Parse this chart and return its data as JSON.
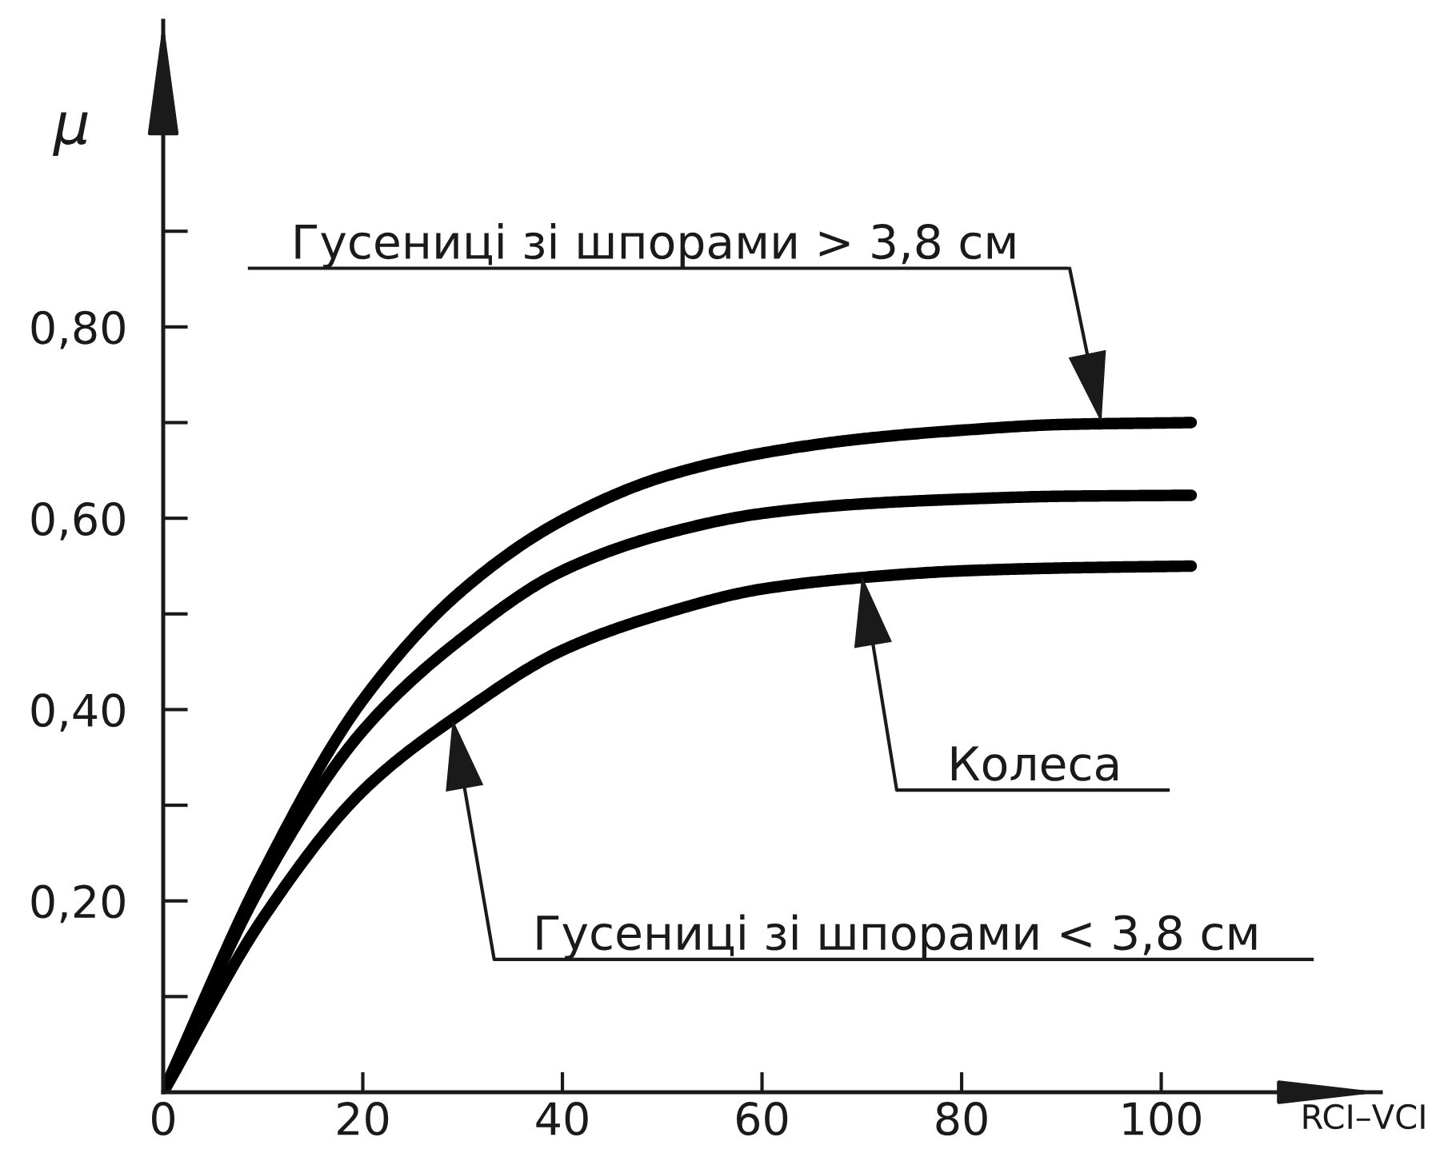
{
  "chart_data": {
    "type": "line",
    "xlabel": "RCI–VCI",
    "ylabel": "μ",
    "xlim": [
      0,
      122
    ],
    "ylim": [
      0,
      1.12
    ],
    "xticks": [
      0,
      20,
      40,
      60,
      80,
      100
    ],
    "yticks": [
      {
        "value": 0.1,
        "label": null
      },
      {
        "value": 0.2,
        "label": "0,20"
      },
      {
        "value": 0.3,
        "label": null
      },
      {
        "value": 0.4,
        "label": "0,40"
      },
      {
        "value": 0.5,
        "label": null
      },
      {
        "value": 0.6,
        "label": "0,60"
      },
      {
        "value": 0.7,
        "label": null
      },
      {
        "value": 0.8,
        "label": "0,80"
      },
      {
        "value": 0.9,
        "label": null
      }
    ],
    "grid": false,
    "marker": "none",
    "line_style": "solid",
    "series": [
      {
        "color": "#000000",
        "x": [
          0,
          10,
          20,
          30,
          40,
          50,
          60,
          70,
          80,
          90,
          103
        ],
        "values": [
          0,
          0.23,
          0.41,
          0.525,
          0.598,
          0.643,
          0.668,
          0.683,
          0.692,
          0.698,
          0.7
        ]
      },
      {
        "color": "#000000",
        "x": [
          0,
          10,
          20,
          30,
          40,
          50,
          60,
          70,
          80,
          90,
          103
        ],
        "values": [
          0,
          0.22,
          0.378,
          0.475,
          0.545,
          0.583,
          0.605,
          0.615,
          0.62,
          0.623,
          0.624
        ]
      },
      {
        "color": "#000000",
        "x": [
          0,
          10,
          20,
          30,
          40,
          50,
          60,
          70,
          80,
          90,
          103
        ],
        "values": [
          0,
          0.182,
          0.315,
          0.397,
          0.462,
          0.5,
          0.526,
          0.538,
          0.545,
          0.548,
          0.55
        ]
      }
    ],
    "annotations": [
      {
        "text": "Гусениці зі шпорами > 3,8 см",
        "x": 94,
        "y": 0.7
      },
      {
        "text": "Колеса",
        "x": 70,
        "y": 0.54
      },
      {
        "text": "Гусениці зі шпорами < 3,8 см",
        "x": 29,
        "y": 0.39
      }
    ]
  }
}
